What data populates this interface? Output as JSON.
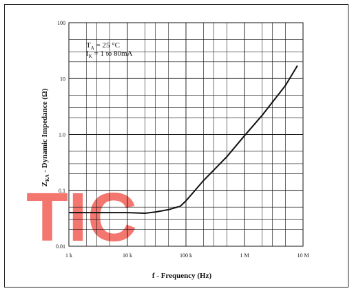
{
  "watermark": "TIC",
  "chart_data": {
    "type": "line",
    "title": "",
    "xlabel": "f - Frequency (Hz)",
    "ylabel_main": "Z",
    "ylabel_sub": "KA",
    "ylabel_rest": " -  Dynamic Impedance (Ω)",
    "x_scale": "log",
    "y_scale": "log",
    "xlim": [
      1000,
      10000000
    ],
    "ylim": [
      0.01,
      100
    ],
    "x_ticks": [
      {
        "value": 1000,
        "label": "1 k"
      },
      {
        "value": 10000,
        "label": "10 k"
      },
      {
        "value": 100000,
        "label": "100 k"
      },
      {
        "value": 1000000,
        "label": "1 M"
      },
      {
        "value": 10000000,
        "label": "10 M"
      }
    ],
    "y_ticks": [
      {
        "value": 0.01,
        "label": "0.01"
      },
      {
        "value": 0.1,
        "label": "0.1"
      },
      {
        "value": 1,
        "label": "1.0"
      },
      {
        "value": 10,
        "label": "10"
      },
      {
        "value": 100,
        "label": "100"
      }
    ],
    "grid": true,
    "annotation": {
      "line1_main": "T",
      "line1_sub": "A",
      "line1_rest": " = 25 °C",
      "line2_main": "I",
      "line2_sub": "K",
      "line2_rest": " = 1 to 80mA"
    },
    "series": [
      {
        "x": [
          1000,
          3000,
          10000,
          20000,
          30000,
          50000,
          80000,
          100000,
          200000,
          500000,
          1000000,
          2000000,
          5000000,
          8000000
        ],
        "y": [
          0.04,
          0.04,
          0.04,
          0.039,
          0.041,
          0.045,
          0.052,
          0.065,
          0.15,
          0.4,
          0.95,
          2.2,
          7.5,
          17
        ]
      }
    ]
  }
}
